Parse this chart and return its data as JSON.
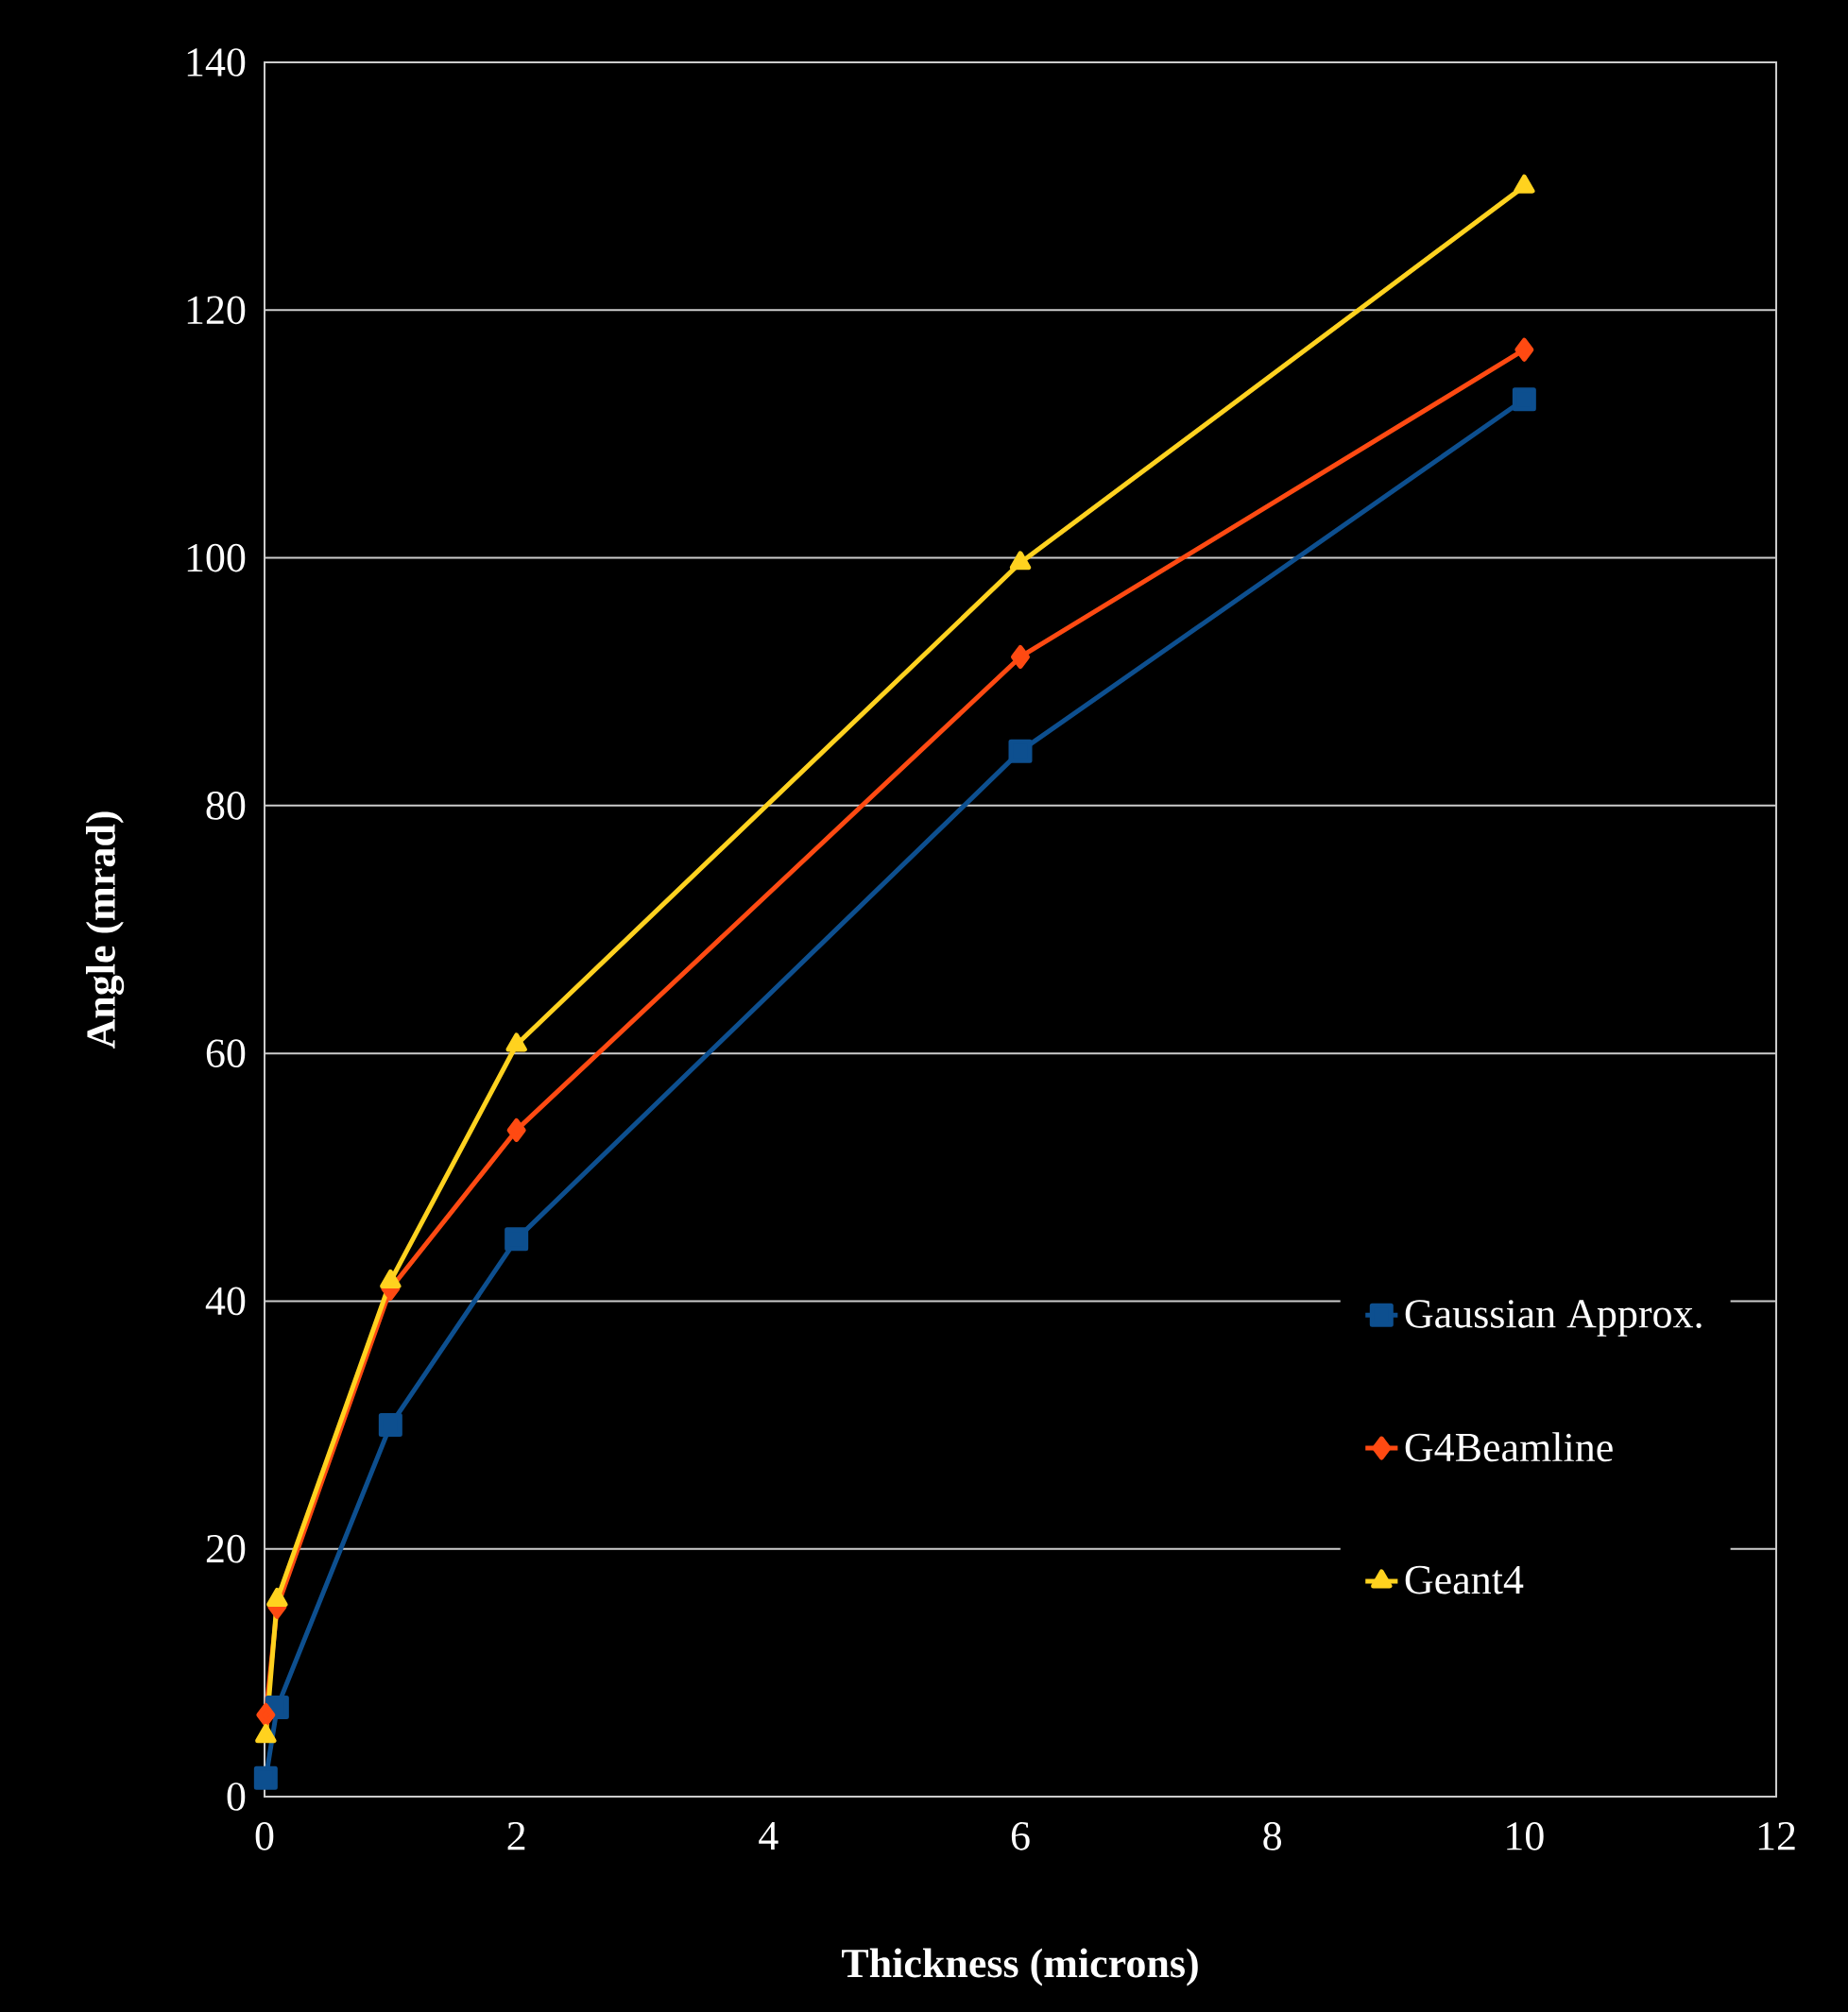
{
  "chart_data": {
    "type": "line",
    "xlabel": "Thickness (microns)",
    "ylabel": "Angle (mrad)",
    "xlim": [
      0,
      12
    ],
    "xticks": [
      0,
      2,
      4,
      6,
      8,
      10,
      12
    ],
    "ylim": [
      0,
      140
    ],
    "yticks": [
      0,
      20,
      40,
      60,
      80,
      100,
      120,
      140
    ],
    "grid": "y",
    "legend": "bottom right",
    "line_style": "solid",
    "series": [
      {
        "name": "Gaussian Approx.",
        "color": "#0d4f8f",
        "marker": "square",
        "x": [
          0.01,
          0.1,
          1,
          2,
          6,
          10
        ],
        "values": [
          1.5,
          7.2,
          30,
          45,
          84.4,
          112.8
        ]
      },
      {
        "name": "G4Beamline",
        "color": "#ff4a12",
        "marker": "diamond",
        "x": [
          0.01,
          0.1,
          1,
          2,
          6,
          10
        ],
        "values": [
          6.6,
          15.3,
          41,
          53.8,
          92,
          116.8
        ]
      },
      {
        "name": "Geant4",
        "color": "#ffd21f",
        "marker": "triangle",
        "x": [
          0.01,
          0.1,
          1,
          2,
          6,
          10
        ],
        "values": [
          4.9,
          15.9,
          41.6,
          60.7,
          99.6,
          130
        ]
      }
    ]
  }
}
